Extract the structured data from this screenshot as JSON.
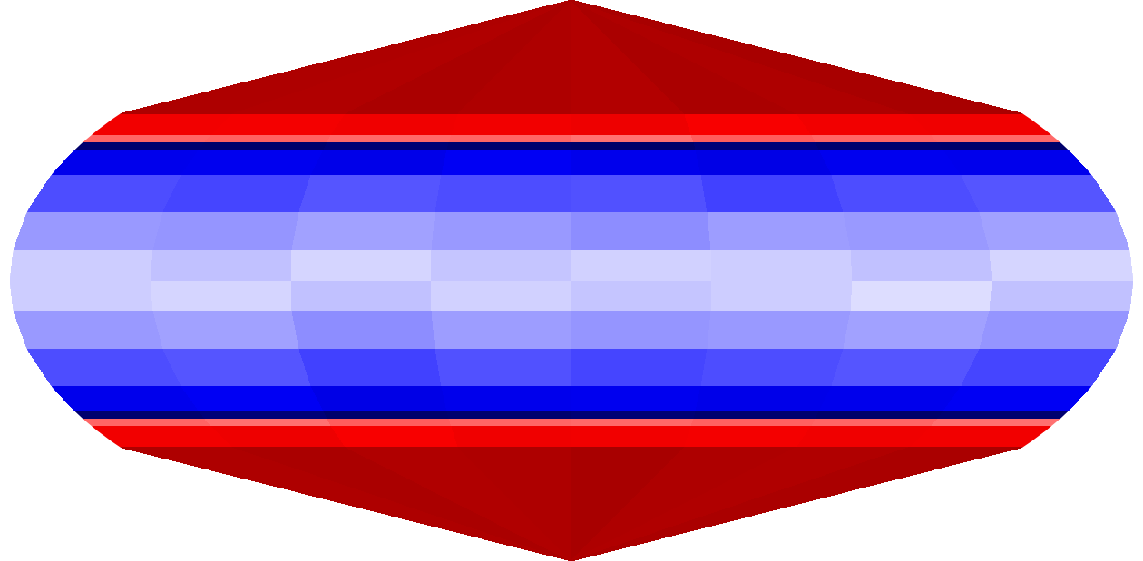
{
  "chart_data": {
    "type": "heatmap",
    "lon_bins": [
      -180,
      -135,
      -90,
      -45,
      0,
      45,
      90,
      135,
      180
    ],
    "lat_bins": [
      -90,
      -45,
      -39,
      -37,
      -35,
      -28,
      -18,
      -8,
      0,
      8,
      18,
      28,
      35,
      37,
      39,
      45,
      90
    ],
    "cells": [
      [
        0.82,
        0.83,
        0.81,
        0.82,
        0.84,
        0.82,
        0.81,
        0.83
      ],
      [
        0.55,
        0.57,
        0.53,
        0.56,
        0.55,
        0.54,
        0.56,
        0.55
      ],
      [
        0.3,
        0.28,
        0.32,
        0.3,
        0.29,
        0.31,
        0.3,
        0.28
      ],
      [
        -0.9,
        -0.88,
        -0.91,
        -0.9,
        -0.89,
        -0.9,
        -0.92,
        -0.9
      ],
      [
        -0.55,
        -0.53,
        -0.57,
        -0.55,
        -0.54,
        -0.56,
        -0.55,
        -0.53
      ],
      [
        -0.35,
        -0.33,
        -0.37,
        -0.34,
        -0.36,
        -0.35,
        -0.33,
        -0.36
      ],
      [
        -0.2,
        -0.18,
        -0.22,
        -0.19,
        -0.21,
        -0.2,
        -0.18,
        -0.21
      ],
      [
        -0.1,
        -0.08,
        -0.12,
        -0.09,
        -0.11,
        -0.1,
        -0.07,
        -0.12
      ],
      [
        -0.1,
        -0.12,
        -0.08,
        -0.11,
        -0.09,
        -0.1,
        -0.12,
        -0.08
      ],
      [
        -0.2,
        -0.21,
        -0.18,
        -0.2,
        -0.22,
        -0.19,
        -0.2,
        -0.18
      ],
      [
        -0.35,
        -0.36,
        -0.33,
        -0.35,
        -0.34,
        -0.37,
        -0.35,
        -0.33
      ],
      [
        -0.55,
        -0.54,
        -0.56,
        -0.53,
        -0.55,
        -0.57,
        -0.54,
        -0.55
      ],
      [
        -0.9,
        -0.91,
        -0.89,
        -0.9,
        -0.92,
        -0.88,
        -0.9,
        -0.91
      ],
      [
        0.3,
        0.31,
        0.29,
        0.3,
        0.28,
        0.32,
        0.3,
        0.29
      ],
      [
        0.55,
        0.54,
        0.56,
        0.55,
        0.57,
        0.53,
        0.55,
        0.56
      ],
      [
        0.82,
        0.81,
        0.83,
        0.82,
        0.8,
        0.83,
        0.82,
        0.84
      ]
    ],
    "color_range": [
      -1,
      1
    ],
    "grid": false,
    "tick_labels": false
  }
}
